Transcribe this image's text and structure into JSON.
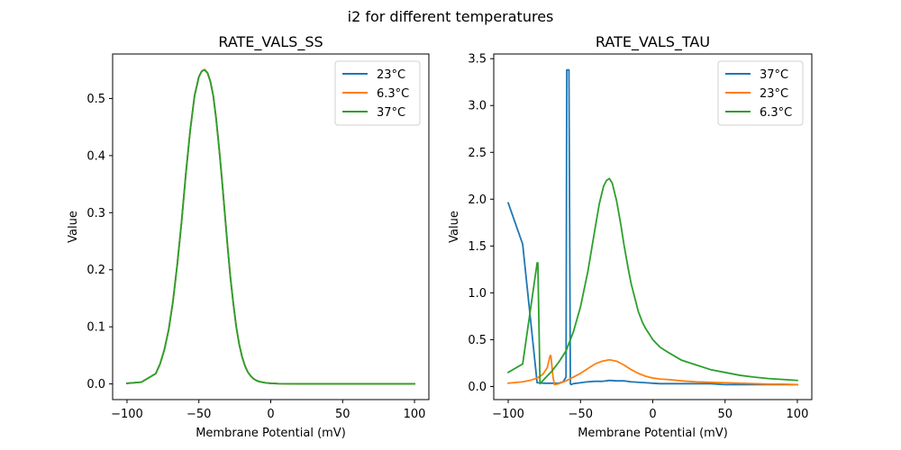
{
  "figure": {
    "suptitle": "i2 for different temperatures"
  },
  "chart_data": [
    {
      "type": "line",
      "title": "RATE_VALS_SS",
      "xlabel": "Membrane Potential (mV)",
      "ylabel": "Value",
      "xlim": [
        -110,
        110
      ],
      "ylim": [
        -0.0275,
        0.578
      ],
      "xticks": [
        -100,
        -50,
        0,
        50,
        100
      ],
      "xtick_labels": [
        "−100",
        "−50",
        "0",
        "50",
        "100"
      ],
      "yticks": [
        0.0,
        0.1,
        0.2,
        0.3,
        0.4,
        0.5
      ],
      "ytick_labels": [
        "0.0",
        "0.1",
        "0.2",
        "0.3",
        "0.4",
        "0.5"
      ],
      "grid": false,
      "legend_position": "upper-right",
      "series": [
        {
          "name": "23°C",
          "color": "#1f77b4",
          "x": [
            -100,
            -90,
            -80,
            -77,
            -74,
            -71,
            -68,
            -65,
            -62,
            -59,
            -56,
            -53,
            -50,
            -48,
            -46,
            -44,
            -42,
            -40,
            -38,
            -36,
            -34,
            -32,
            -30,
            -28,
            -26,
            -24,
            -22,
            -20,
            -18,
            -16,
            -14,
            -12,
            -10,
            -8,
            -6,
            -4,
            -2,
            0,
            5,
            10,
            20,
            30,
            40,
            50,
            60,
            70,
            80,
            90,
            100
          ],
          "y": [
            0.001,
            0.003,
            0.018,
            0.035,
            0.06,
            0.095,
            0.145,
            0.21,
            0.285,
            0.37,
            0.445,
            0.505,
            0.538,
            0.548,
            0.55,
            0.545,
            0.53,
            0.505,
            0.465,
            0.415,
            0.36,
            0.3,
            0.24,
            0.185,
            0.14,
            0.1,
            0.07,
            0.048,
            0.032,
            0.021,
            0.014,
            0.009,
            0.006,
            0.004,
            0.003,
            0.002,
            0.0015,
            0.001,
            0.0005,
            0.0003,
            0.0002,
            0.0002,
            0.0002,
            0.0002,
            0.0002,
            0.0002,
            0.0002,
            0.0002,
            0.0002
          ]
        },
        {
          "name": "6.3°C",
          "color": "#ff7f0e",
          "x": [
            -100,
            -90,
            -80,
            -77,
            -74,
            -71,
            -68,
            -65,
            -62,
            -59,
            -56,
            -53,
            -50,
            -48,
            -46,
            -44,
            -42,
            -40,
            -38,
            -36,
            -34,
            -32,
            -30,
            -28,
            -26,
            -24,
            -22,
            -20,
            -18,
            -16,
            -14,
            -12,
            -10,
            -8,
            -6,
            -4,
            -2,
            0,
            5,
            10,
            20,
            30,
            40,
            50,
            60,
            70,
            80,
            90,
            100
          ],
          "y": [
            0.001,
            0.003,
            0.018,
            0.035,
            0.06,
            0.095,
            0.145,
            0.21,
            0.285,
            0.37,
            0.445,
            0.505,
            0.538,
            0.548,
            0.551,
            0.545,
            0.53,
            0.505,
            0.465,
            0.415,
            0.36,
            0.3,
            0.24,
            0.185,
            0.14,
            0.1,
            0.07,
            0.048,
            0.032,
            0.021,
            0.014,
            0.009,
            0.006,
            0.004,
            0.003,
            0.002,
            0.0015,
            0.001,
            0.0005,
            0.0003,
            0.0002,
            0.0002,
            0.0002,
            0.0002,
            0.0002,
            0.0002,
            0.0002,
            0.0002,
            0.0002
          ]
        },
        {
          "name": "37°C",
          "color": "#2ca02c",
          "x": [
            -100,
            -90,
            -80,
            -77,
            -74,
            -71,
            -68,
            -65,
            -62,
            -59,
            -56,
            -53,
            -50,
            -48,
            -46,
            -44,
            -42,
            -40,
            -38,
            -36,
            -34,
            -32,
            -30,
            -28,
            -26,
            -24,
            -22,
            -20,
            -18,
            -16,
            -14,
            -12,
            -10,
            -8,
            -6,
            -4,
            -2,
            0,
            5,
            10,
            20,
            30,
            40,
            50,
            60,
            70,
            80,
            90,
            100
          ],
          "y": [
            0.001,
            0.003,
            0.018,
            0.035,
            0.06,
            0.095,
            0.145,
            0.21,
            0.285,
            0.37,
            0.445,
            0.505,
            0.538,
            0.548,
            0.55,
            0.545,
            0.53,
            0.505,
            0.465,
            0.415,
            0.36,
            0.3,
            0.24,
            0.185,
            0.14,
            0.1,
            0.07,
            0.048,
            0.032,
            0.021,
            0.014,
            0.009,
            0.006,
            0.004,
            0.003,
            0.002,
            0.0015,
            0.001,
            0.0005,
            0.0003,
            0.0002,
            0.0002,
            0.0002,
            0.0002,
            0.0002,
            0.0002,
            0.0002,
            0.0002,
            0.0002
          ]
        }
      ]
    },
    {
      "type": "line",
      "title": "RATE_VALS_TAU",
      "xlabel": "Membrane Potential (mV)",
      "ylabel": "Value",
      "xlim": [
        -110,
        110
      ],
      "ylim": [
        -0.14,
        3.55
      ],
      "xticks": [
        -100,
        -50,
        0,
        50,
        100
      ],
      "xtick_labels": [
        "−100",
        "−50",
        "0",
        "50",
        "100"
      ],
      "yticks": [
        0.0,
        0.5,
        1.0,
        1.5,
        2.0,
        2.5,
        3.0,
        3.5
      ],
      "ytick_labels": [
        "0.0",
        "0.5",
        "1.0",
        "1.5",
        "2.0",
        "2.5",
        "3.0",
        "3.5"
      ],
      "grid": false,
      "legend_position": "upper-right",
      "series": [
        {
          "name": "37°C",
          "color": "#1f77b4",
          "x": [
            -100,
            -90,
            -80,
            -75,
            -70,
            -65,
            -62,
            -60,
            -59.5,
            -58,
            -57,
            -56.5,
            -55,
            -50,
            -45,
            -40,
            -35,
            -30,
            -25,
            -20,
            -15,
            -10,
            -5,
            0,
            5,
            10,
            20,
            30,
            40,
            50,
            60,
            70,
            80,
            90,
            100
          ],
          "y": [
            1.96,
            1.52,
            0.04,
            0.035,
            0.035,
            0.035,
            0.05,
            0.1,
            3.38,
            3.38,
            0.03,
            0.02,
            0.03,
            0.04,
            0.05,
            0.055,
            0.055,
            0.065,
            0.06,
            0.06,
            0.05,
            0.045,
            0.04,
            0.035,
            0.03,
            0.03,
            0.03,
            0.03,
            0.03,
            0.02,
            0.02,
            0.02,
            0.02,
            0.02,
            0.02
          ]
        },
        {
          "name": "23°C",
          "color": "#ff7f0e",
          "x": [
            -100,
            -90,
            -85,
            -80,
            -76,
            -73,
            -71,
            -70.5,
            -69,
            -68,
            -65,
            -60,
            -55,
            -50,
            -45,
            -40,
            -35,
            -30,
            -25,
            -20,
            -15,
            -10,
            -5,
            0,
            5,
            10,
            20,
            30,
            40,
            50,
            60,
            70,
            80,
            90,
            100
          ],
          "y": [
            0.035,
            0.05,
            0.065,
            0.09,
            0.13,
            0.2,
            0.33,
            0.33,
            0.1,
            0.02,
            0.03,
            0.06,
            0.1,
            0.14,
            0.19,
            0.24,
            0.27,
            0.285,
            0.27,
            0.23,
            0.18,
            0.14,
            0.11,
            0.09,
            0.08,
            0.075,
            0.06,
            0.05,
            0.045,
            0.04,
            0.035,
            0.03,
            0.025,
            0.025,
            0.02
          ]
        },
        {
          "name": "6.3°C",
          "color": "#2ca02c",
          "x": [
            -100,
            -90,
            -80,
            -79.5,
            -78,
            -75,
            -70,
            -65,
            -60,
            -55,
            -50,
            -45,
            -40,
            -37,
            -34,
            -32,
            -30,
            -28,
            -25,
            -22,
            -20,
            -17,
            -15,
            -12,
            -10,
            -7,
            -5,
            -2,
            0,
            5,
            10,
            20,
            30,
            40,
            50,
            60,
            70,
            80,
            90,
            100
          ],
          "y": [
            0.15,
            0.24,
            1.32,
            1.32,
            0.03,
            0.08,
            0.16,
            0.26,
            0.38,
            0.58,
            0.85,
            1.22,
            1.68,
            1.95,
            2.14,
            2.2,
            2.22,
            2.17,
            1.98,
            1.72,
            1.52,
            1.26,
            1.1,
            0.92,
            0.8,
            0.68,
            0.62,
            0.55,
            0.5,
            0.42,
            0.37,
            0.28,
            0.23,
            0.18,
            0.15,
            0.12,
            0.1,
            0.085,
            0.075,
            0.065
          ]
        }
      ]
    }
  ]
}
